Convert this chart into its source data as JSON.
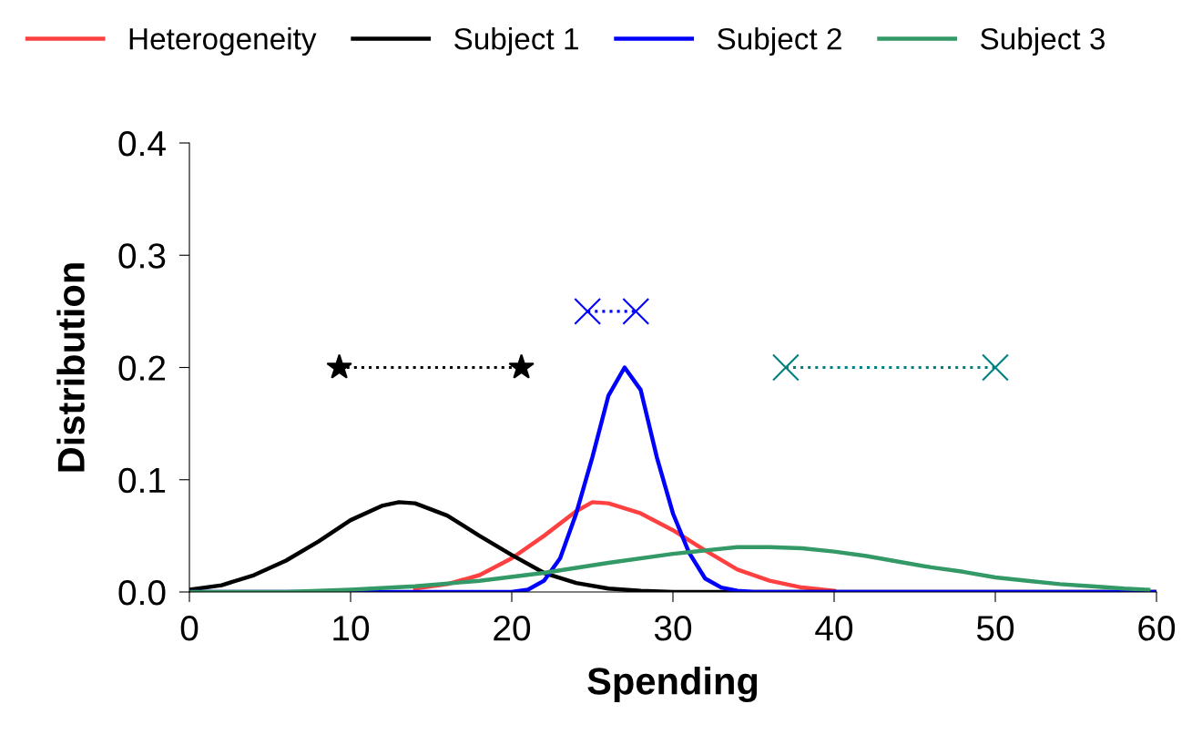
{
  "chart_data": {
    "type": "line",
    "xlabel": "Spending",
    "ylabel": "Distribution",
    "xlim": [
      0,
      60
    ],
    "ylim": [
      0,
      0.4
    ],
    "xticks": [
      0,
      10,
      20,
      30,
      40,
      50,
      60
    ],
    "yticks": [
      {
        "value": 0,
        "label": "0.0"
      },
      {
        "value": 0.1,
        "label": "0.1"
      },
      {
        "value": 0.2,
        "label": "0.2"
      },
      {
        "value": 0.3,
        "label": "0.3"
      },
      {
        "value": 0.4,
        "label": "0.4"
      }
    ],
    "grid": false,
    "legend": "top",
    "marker": "none",
    "line_style": "solid",
    "series": [
      {
        "name": "Heterogeneity",
        "color": "#ff4040",
        "x": [
          14,
          16,
          18,
          20,
          22,
          24,
          25,
          26,
          28,
          30,
          32,
          34,
          36,
          38,
          40
        ],
        "values": [
          0.003,
          0.007,
          0.015,
          0.03,
          0.05,
          0.072,
          0.08,
          0.079,
          0.07,
          0.055,
          0.037,
          0.02,
          0.01,
          0.004,
          0.001
        ]
      },
      {
        "name": "Subject 1",
        "color": "#000000",
        "x": [
          0,
          2,
          4,
          6,
          8,
          10,
          12,
          13,
          14,
          16,
          18,
          20,
          22,
          24,
          26,
          28,
          30,
          60
        ],
        "values": [
          0.002,
          0.006,
          0.015,
          0.028,
          0.045,
          0.064,
          0.077,
          0.08,
          0.079,
          0.068,
          0.05,
          0.033,
          0.017,
          0.008,
          0.003,
          0.001,
          0,
          0
        ]
      },
      {
        "name": "Subject 2",
        "color": "#0000ff",
        "x": [
          0,
          20,
          21,
          22,
          23,
          24,
          25,
          26,
          27,
          28,
          29,
          30,
          31,
          32,
          33,
          34,
          35,
          60
        ],
        "values": [
          0,
          0,
          0.002,
          0.01,
          0.03,
          0.07,
          0.12,
          0.175,
          0.2,
          0.18,
          0.12,
          0.07,
          0.035,
          0.012,
          0.004,
          0.001,
          0,
          0
        ]
      },
      {
        "name": "Subject 3",
        "color": "#339966",
        "x": [
          0,
          6,
          8,
          10,
          14,
          18,
          22,
          26,
          30,
          32,
          34,
          36,
          38,
          40,
          42,
          44,
          46,
          48,
          50,
          52,
          54,
          56,
          58,
          59.5
        ],
        "values": [
          0,
          0,
          0.001,
          0.002,
          0.005,
          0.01,
          0.017,
          0.026,
          0.034,
          0.037,
          0.04,
          0.04,
          0.039,
          0.036,
          0.032,
          0.027,
          0.022,
          0.018,
          0.013,
          0.01,
          0.007,
          0.005,
          0.003,
          0.002
        ]
      },
      {
        "color": "#000000",
        "x": [
          9.3,
          20.6
        ],
        "values": [
          0.2,
          0.2
        ],
        "marker": "star",
        "line_style": "dotted"
      },
      {
        "color": "#0000ff",
        "x": [
          24.7,
          27.7
        ],
        "values": [
          0.25,
          0.25
        ],
        "marker": "cross",
        "line_style": "dotted"
      },
      {
        "color": "#008080",
        "x": [
          37,
          50
        ],
        "values": [
          0.2,
          0.2
        ],
        "marker": "cross",
        "line_style": "dotted"
      }
    ]
  }
}
